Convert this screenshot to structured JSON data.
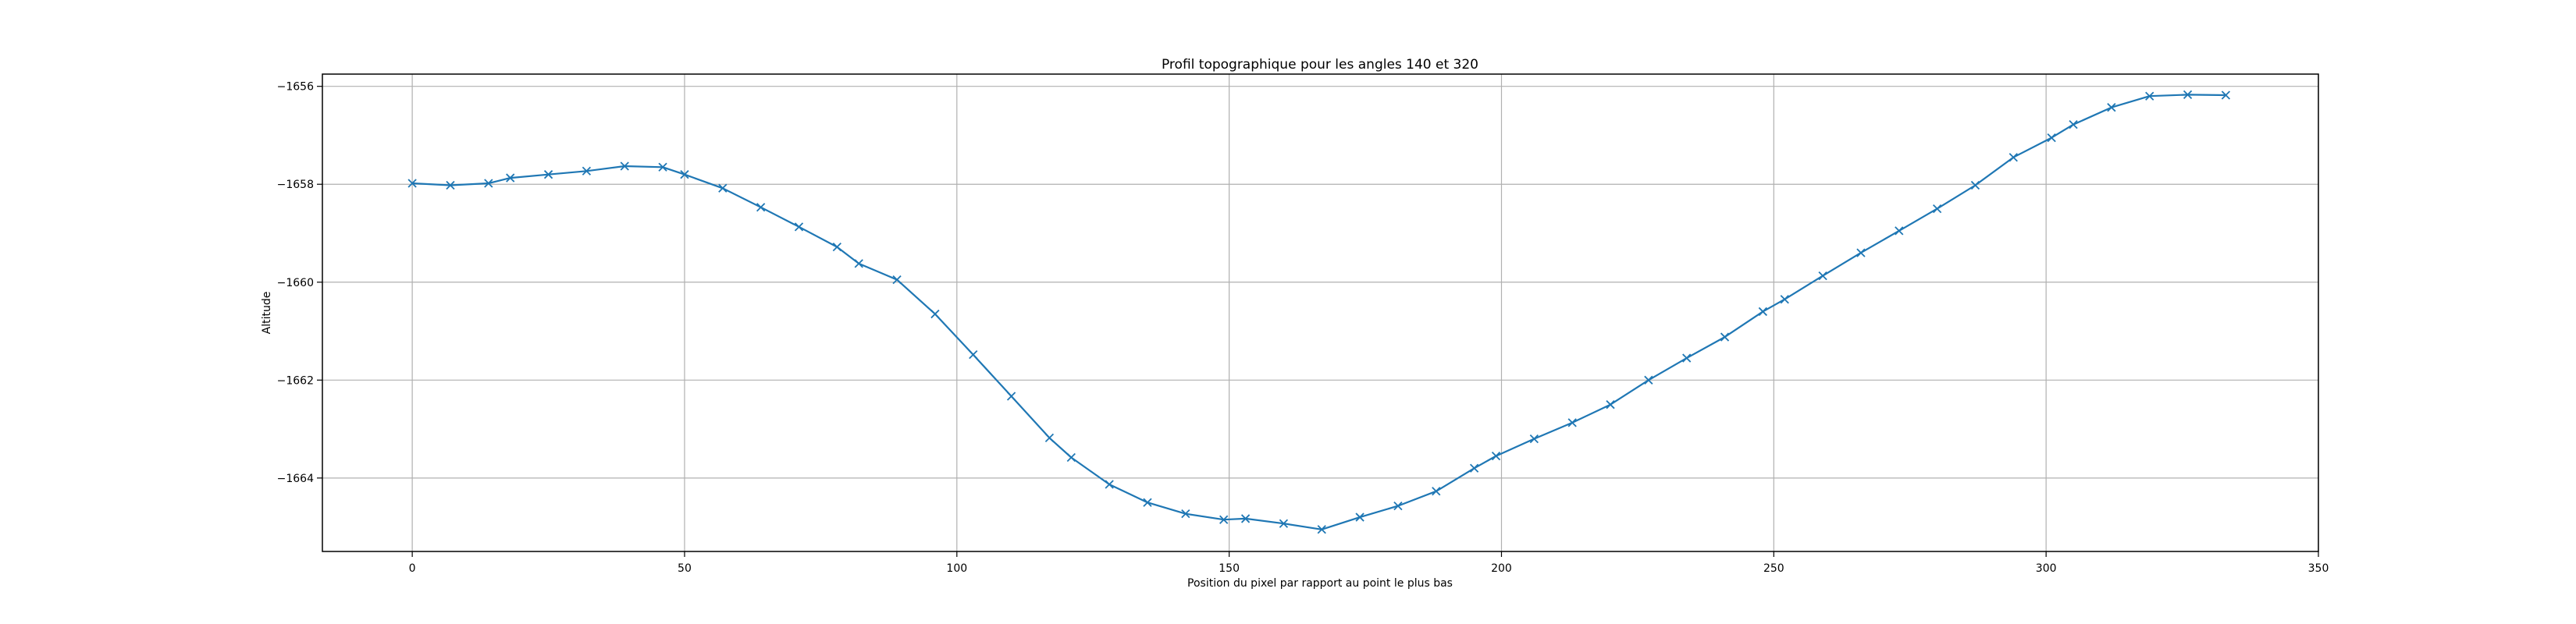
{
  "chart_data": {
    "type": "line",
    "title": "Profil topographique pour les angles 140 et 320",
    "xlabel": "Position du pixel par rapport au point le plus bas",
    "ylabel": "Altitude",
    "xlim": [
      -16.5,
      350
    ],
    "ylim": [
      -1665.5,
      -1655.75
    ],
    "grid": true,
    "marker": "x",
    "line_color": "#1f77b4",
    "x_ticks": [
      0,
      50,
      100,
      150,
      200,
      250,
      300,
      350
    ],
    "y_ticks": [
      -1664,
      -1662,
      -1660,
      -1658,
      -1656
    ],
    "series": [
      {
        "x": [
          0,
          7,
          14,
          18,
          25,
          32,
          39,
          46,
          50,
          57,
          64,
          71,
          78,
          82,
          89,
          96,
          103,
          110,
          117,
          121,
          128,
          135,
          142,
          149,
          153,
          160,
          167,
          174,
          181,
          188,
          195,
          199,
          206,
          213,
          220,
          227,
          234,
          241,
          248,
          252,
          259,
          266,
          273,
          280,
          287,
          294,
          301,
          305,
          312,
          319,
          326,
          333
        ],
        "y": [
          -1657.98,
          -1658.02,
          -1657.98,
          -1657.87,
          -1657.8,
          -1657.73,
          -1657.63,
          -1657.65,
          -1657.8,
          -1658.08,
          -1658.47,
          -1658.87,
          -1659.28,
          -1659.62,
          -1659.95,
          -1660.65,
          -1661.48,
          -1662.33,
          -1663.18,
          -1663.58,
          -1664.13,
          -1664.5,
          -1664.73,
          -1664.85,
          -1664.83,
          -1664.93,
          -1665.05,
          -1664.8,
          -1664.57,
          -1664.27,
          -1663.8,
          -1663.55,
          -1663.2,
          -1662.87,
          -1662.5,
          -1662.0,
          -1661.55,
          -1661.12,
          -1660.6,
          -1660.35,
          -1659.87,
          -1659.4,
          -1658.95,
          -1658.5,
          -1658.02,
          -1657.45,
          -1657.05,
          -1656.78,
          -1656.43,
          -1656.2,
          -1656.17,
          -1656.18
        ]
      }
    ]
  }
}
